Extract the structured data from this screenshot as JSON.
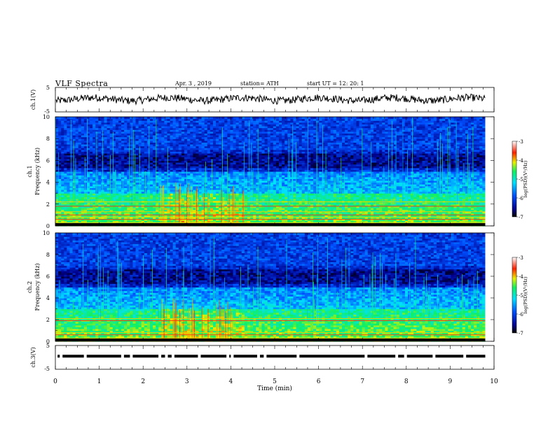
{
  "header": {
    "title": "VLF Spectra",
    "date": "Apr. 3 , 2019",
    "station": "station= ATH",
    "start": "start UT = 12: 20: 1"
  },
  "chart_data": [
    {
      "type": "line",
      "ylabel": "ch.1(V)",
      "ylim": [
        -5,
        5
      ],
      "yticks": [
        "5",
        "-5"
      ],
      "xlim": [
        0,
        10
      ],
      "series": [
        {
          "baseline": 0.2,
          "approx_noise_amplitude": 0.6,
          "color": "#000000"
        }
      ]
    },
    {
      "type": "heatmap",
      "ylabel": "ch.1 Frequency (kHz)",
      "ylim": [
        0,
        10
      ],
      "yticks": [
        "0",
        "2",
        "4",
        "6",
        "8",
        "10"
      ],
      "xlim": [
        0,
        10
      ],
      "colorbar": {
        "label": "log(PSD)(V²/Hz)",
        "ticks": [
          "-3",
          "-4",
          "-5",
          "-6",
          "-7"
        ],
        "range": [
          -7,
          -3
        ]
      },
      "features": {
        "strong_lines_khz": [
          0.3,
          0.6,
          0.8,
          1.0,
          1.3,
          1.8,
          2.2
        ],
        "high_intensity_band_khz": [
          0.5,
          3.0
        ],
        "impulsive_burst_minutes": [
          2.4,
          4.3
        ],
        "data_end_minute": 9.8
      }
    },
    {
      "type": "heatmap",
      "ylabel": "ch.2 Frequency (kHz)",
      "ylim": [
        0,
        10
      ],
      "yticks": [
        "0",
        "2",
        "4",
        "6",
        "8",
        "10"
      ],
      "xlim": [
        0,
        10
      ],
      "colorbar": {
        "label": "log(PSD)(V²/Hz)",
        "ticks": [
          "-3",
          "-4",
          "-5",
          "-6",
          "-7"
        ],
        "range": [
          -7,
          -3
        ]
      },
      "features": {
        "strong_lines_khz": [
          0.3,
          0.6,
          0.8,
          1.9,
          2.1
        ],
        "high_intensity_band_khz": [
          0.5,
          3.0
        ],
        "impulsive_burst_minutes": [
          2.4,
          4.3
        ],
        "data_end_minute": 9.8
      }
    },
    {
      "type": "line",
      "ylabel": "ch.3(V)",
      "ylim": [
        -5,
        5
      ],
      "yticks": [
        "5",
        "-5"
      ],
      "xlabel": "Time (min)",
      "xlim": [
        0,
        10
      ],
      "xticks": [
        "0",
        "1",
        "2",
        "3",
        "4",
        "5",
        "6",
        "7",
        "8",
        "9",
        "10"
      ],
      "series": [
        {
          "baseline": 0.5,
          "color": "#000000",
          "gaps_minutes": [
            0.1,
            0.65,
            1.5,
            1.7,
            2.35,
            2.5,
            2.65,
            3.25,
            3.9,
            4.0,
            4.6,
            4.75,
            5.5,
            7.05,
            7.75,
            7.95,
            8.6,
            9.3
          ]
        }
      ]
    }
  ]
}
